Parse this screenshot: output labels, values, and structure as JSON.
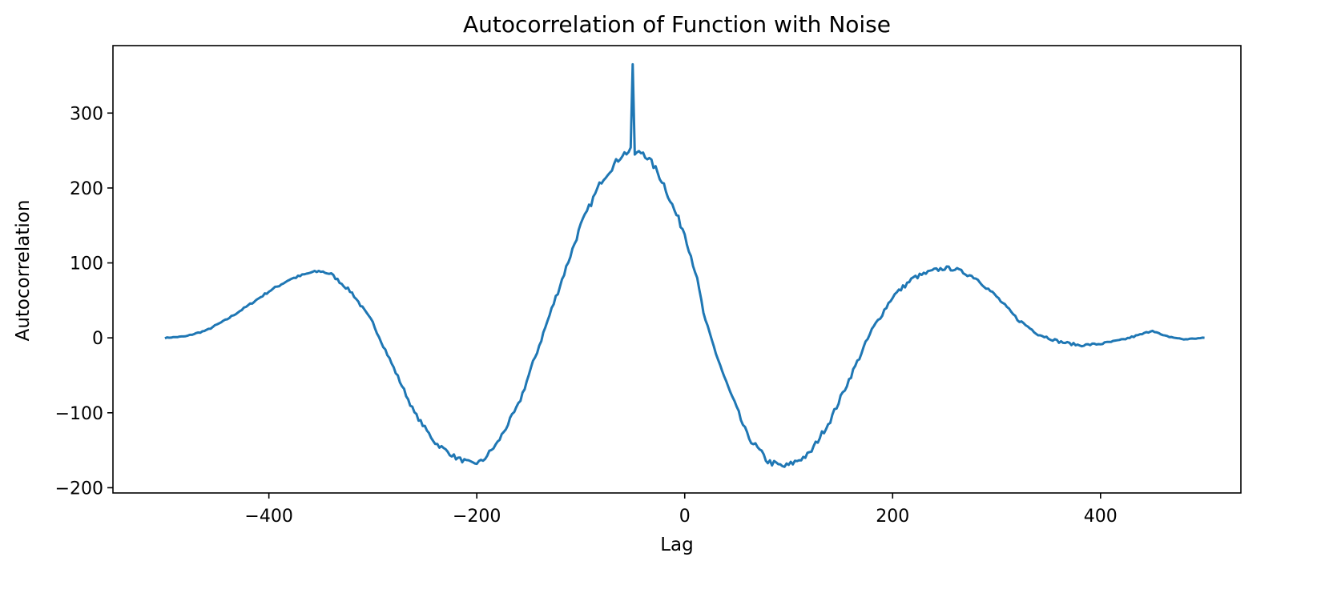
{
  "chart_data": {
    "type": "line",
    "title": "Autocorrelation of Function with Noise",
    "xlabel": "Lag",
    "ylabel": "Autocorrelation",
    "xlim": [
      -550,
      535
    ],
    "ylim": [
      -207,
      390
    ],
    "x_ticks": [
      -400,
      -200,
      0,
      200,
      400
    ],
    "x_tick_labels": [
      "−400",
      "−200",
      "0",
      "200",
      "400"
    ],
    "y_ticks": [
      -200,
      -100,
      0,
      100,
      200,
      300
    ],
    "y_tick_labels": [
      "−200",
      "−100",
      "0",
      "100",
      "200",
      "300"
    ],
    "grid": false,
    "legend": "none",
    "color": "#1f77b4",
    "series": [
      {
        "x": [
          -500,
          -480,
          -460,
          -440,
          -420,
          -400,
          -380,
          -360,
          -350,
          -340,
          -320,
          -300,
          -280,
          -260,
          -240,
          -220,
          -205,
          -195,
          -180,
          -160,
          -140,
          -120,
          -100,
          -80,
          -60,
          -51,
          -50,
          -49,
          -40,
          -30,
          -20,
          -10,
          0,
          10,
          20,
          40,
          60,
          80,
          95,
          100,
          120,
          140,
          160,
          180,
          200,
          220,
          240,
          250,
          260,
          280,
          300,
          320,
          340,
          360,
          380,
          400,
          420,
          440,
          450,
          460,
          480,
          500
        ],
        "y": [
          0,
          2,
          10,
          25,
          43,
          62,
          78,
          87,
          89,
          85,
          60,
          20,
          -40,
          -100,
          -140,
          -160,
          -168,
          -165,
          -140,
          -90,
          -10,
          70,
          150,
          210,
          245,
          250,
          365,
          245,
          248,
          230,
          205,
          170,
          140,
          90,
          20,
          -60,
          -130,
          -165,
          -172,
          -170,
          -155,
          -110,
          -50,
          10,
          55,
          80,
          90,
          93,
          92,
          80,
          55,
          25,
          5,
          -5,
          -10,
          -8,
          -3,
          5,
          10,
          3,
          -2,
          0
        ]
      }
    ]
  }
}
